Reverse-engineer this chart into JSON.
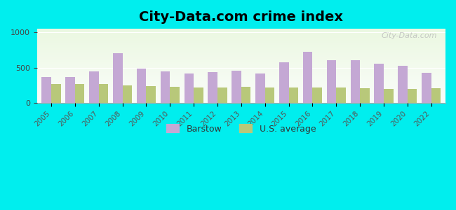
{
  "title": "City-Data.com crime index",
  "years": [
    2005,
    2006,
    2007,
    2008,
    2009,
    2010,
    2011,
    2012,
    2013,
    2014,
    2015,
    2016,
    2017,
    2018,
    2019,
    2020,
    2022
  ],
  "barstow": [
    370,
    370,
    450,
    700,
    490,
    450,
    420,
    440,
    460,
    420,
    580,
    720,
    610,
    610,
    560,
    530,
    430
  ],
  "us_avg": [
    270,
    270,
    270,
    250,
    240,
    230,
    220,
    220,
    230,
    220,
    220,
    220,
    220,
    210,
    200,
    195,
    205
  ],
  "barstow_color": "#c4a8d4",
  "us_avg_color": "#b8c87a",
  "background_outer": "#00eeee",
  "ylim": [
    0,
    1050
  ],
  "yticks": [
    0,
    500,
    1000
  ],
  "bar_width": 0.4,
  "legend_barstow": "Barstow",
  "legend_us": "U.S. average",
  "watermark": "City-Data.com",
  "title_fontsize": 14
}
